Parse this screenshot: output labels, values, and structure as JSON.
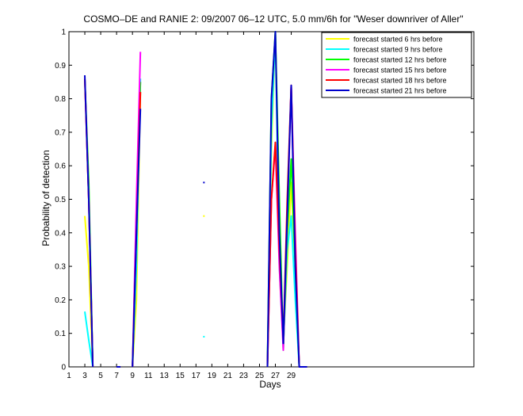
{
  "chart_data": {
    "type": "line",
    "title": "COSMO–DE and RANIE 2: 09/2007 06–12 UTC, 5.0 mm/6h for \"Weser downriver of Aller\"",
    "xlabel": "Days",
    "ylabel": "Probability of detection",
    "xlim": [
      1,
      52
    ],
    "ylim": [
      0,
      1
    ],
    "xticks": [
      1,
      3,
      5,
      7,
      9,
      11,
      13,
      15,
      17,
      19,
      21,
      23,
      25,
      27,
      29
    ],
    "xtick_labels": [
      "1",
      "3",
      "5",
      "7",
      "9",
      "11",
      "13",
      "15",
      "17",
      "19",
      "21",
      "23",
      "25",
      "27",
      "29"
    ],
    "yticks": [
      0,
      0.1,
      0.2,
      0.3,
      0.4,
      0.5,
      0.6,
      0.7,
      0.8,
      0.9,
      1
    ],
    "ytick_labels": [
      "0",
      "0.1",
      "0.2",
      "0.3",
      "0.4",
      "0.5",
      "0.6",
      "0.7",
      "0.8",
      "0.9",
      "1"
    ],
    "grid": false,
    "legend_position": "top-right",
    "series": [
      {
        "name": "forecast started 6 hrs before",
        "color": "#ffff00",
        "points": [
          [
            3,
            0.45
          ],
          [
            3.5,
            0.3
          ],
          [
            4,
            0.0
          ],
          [
            null,
            null
          ],
          [
            7,
            0
          ],
          [
            7.5,
            0
          ],
          [
            null,
            null
          ],
          [
            9,
            0
          ],
          [
            9.5,
            0.2
          ],
          [
            10,
            0.82
          ],
          [
            null,
            null
          ],
          [
            18,
            0.45
          ],
          [
            null,
            null
          ],
          [
            26,
            0
          ],
          [
            26.5,
            0.65
          ],
          [
            27,
            1.0
          ],
          [
            27.5,
            0.4
          ],
          [
            28,
            0.08
          ],
          [
            28.5,
            0.3
          ],
          [
            29,
            0.55
          ],
          [
            29.5,
            0.3
          ],
          [
            30,
            0
          ],
          [
            31,
            0
          ]
        ]
      },
      {
        "name": "forecast started 9 hrs before",
        "color": "#00ffff",
        "points": [
          [
            3,
            0.165
          ],
          [
            3.5,
            0.08
          ],
          [
            4,
            0.0
          ],
          [
            null,
            null
          ],
          [
            7,
            0
          ],
          [
            7.5,
            0
          ],
          [
            null,
            null
          ],
          [
            9,
            0
          ],
          [
            9.5,
            0.3
          ],
          [
            10,
            0.86
          ],
          [
            null,
            null
          ],
          [
            18,
            0.09
          ],
          [
            null,
            null
          ],
          [
            26,
            0
          ],
          [
            26.5,
            0.7
          ],
          [
            27,
            1.0
          ],
          [
            27.5,
            0.3
          ],
          [
            28,
            0.06
          ],
          [
            28.5,
            0.35
          ],
          [
            29,
            0.45
          ],
          [
            29.5,
            0.2
          ],
          [
            30,
            0
          ],
          [
            31,
            0
          ]
        ]
      },
      {
        "name": "forecast started 12 hrs before",
        "color": "#00ff00",
        "points": [
          [
            3,
            0.86
          ],
          [
            3.5,
            0.55
          ],
          [
            4,
            0.0
          ],
          [
            null,
            null
          ],
          [
            7,
            0
          ],
          [
            7.5,
            0
          ],
          [
            null,
            null
          ],
          [
            9,
            0
          ],
          [
            9.5,
            0.45
          ],
          [
            10,
            0.85
          ],
          [
            null,
            null
          ],
          [
            26,
            0
          ],
          [
            26.5,
            0.8
          ],
          [
            27,
            1.0
          ],
          [
            27.5,
            0.5
          ],
          [
            28,
            0.05
          ],
          [
            28.5,
            0.4
          ],
          [
            29,
            0.62
          ],
          [
            29.5,
            0.3
          ],
          [
            30,
            0
          ],
          [
            31,
            0
          ]
        ]
      },
      {
        "name": "forecast started 15 hrs before",
        "color": "#ff00ff",
        "points": [
          [
            3,
            0.86
          ],
          [
            3.5,
            0.5
          ],
          [
            4,
            0.0
          ],
          [
            null,
            null
          ],
          [
            7,
            0
          ],
          [
            7.5,
            0
          ],
          [
            null,
            null
          ],
          [
            9,
            0
          ],
          [
            9.5,
            0.5
          ],
          [
            10,
            0.94
          ],
          [
            null,
            null
          ],
          [
            26,
            0
          ],
          [
            26.5,
            0.5
          ],
          [
            27,
            0.66
          ],
          [
            27.5,
            0.3
          ],
          [
            28,
            0.05
          ],
          [
            28.5,
            0.45
          ],
          [
            29,
            0.84
          ],
          [
            29.5,
            0.4
          ],
          [
            30,
            0
          ],
          [
            31,
            0
          ]
        ]
      },
      {
        "name": "forecast started 18 hrs before",
        "color": "#ff0000",
        "points": [
          [
            3,
            0.86
          ],
          [
            3.5,
            0.5
          ],
          [
            4,
            0.0
          ],
          [
            null,
            null
          ],
          [
            7,
            0
          ],
          [
            7.5,
            0
          ],
          [
            null,
            null
          ],
          [
            9,
            0
          ],
          [
            9.5,
            0.4
          ],
          [
            10,
            0.82
          ],
          [
            null,
            null
          ],
          [
            26,
            0
          ],
          [
            26.5,
            0.5
          ],
          [
            27,
            0.67
          ],
          [
            27.5,
            0.35
          ],
          [
            28,
            0.08
          ],
          [
            28.5,
            0.5
          ],
          [
            29,
            0.84
          ],
          [
            29.5,
            0.35
          ],
          [
            30,
            0
          ],
          [
            31,
            0
          ]
        ]
      },
      {
        "name": "forecast started 21 hrs before",
        "color": "#0000cc",
        "points": [
          [
            3,
            0.87
          ],
          [
            3.5,
            0.5
          ],
          [
            4,
            0.0
          ],
          [
            null,
            null
          ],
          [
            7,
            0
          ],
          [
            7.5,
            0
          ],
          [
            null,
            null
          ],
          [
            9,
            0
          ],
          [
            9.5,
            0.4
          ],
          [
            10,
            0.77
          ],
          [
            null,
            null
          ],
          [
            18,
            0.55
          ],
          [
            null,
            null
          ],
          [
            26,
            0
          ],
          [
            26.5,
            0.8
          ],
          [
            27,
            1.0
          ],
          [
            27.5,
            0.4
          ],
          [
            28,
            0.07
          ],
          [
            28.5,
            0.45
          ],
          [
            29,
            0.84
          ],
          [
            29.5,
            0.3
          ],
          [
            30,
            0
          ],
          [
            31,
            0
          ]
        ]
      }
    ]
  }
}
